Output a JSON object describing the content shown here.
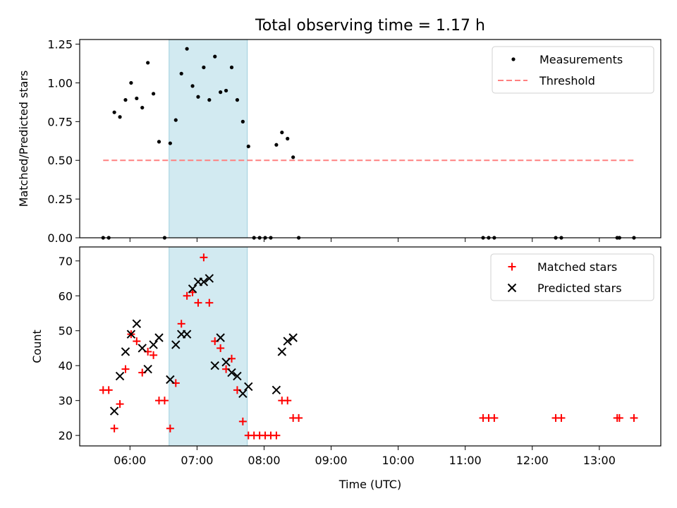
{
  "title": "Total observing time = 1.17 h",
  "chart_data": [
    {
      "type": "scatter",
      "ylabel": "Matched/Predicted stars",
      "xlabel": "",
      "xlim": [
        "05:15",
        "13:55"
      ],
      "ylim": [
        0,
        1.28
      ],
      "yticks": [
        0,
        0.25,
        0.5,
        0.75,
        1.0,
        1.25
      ],
      "ytick_labels": [
        "0.00",
        "0.25",
        "0.50",
        "0.75",
        "1.00",
        "1.25"
      ],
      "xtick_labels": [],
      "legend_position": "top-right",
      "shaded_span": {
        "x": [
          "06:35",
          "07:45"
        ],
        "color": "#add8e6"
      },
      "series": [
        {
          "name": "Measurements",
          "kind": "points",
          "color": "#000000",
          "points": [
            [
              "05:36",
              0
            ],
            [
              "05:41",
              0
            ],
            [
              "05:46",
              0.81
            ],
            [
              "05:51",
              0.78
            ],
            [
              "05:56",
              0.89
            ],
            [
              "06:01",
              1.0
            ],
            [
              "06:06",
              0.9
            ],
            [
              "06:11",
              0.84
            ],
            [
              "06:16",
              1.13
            ],
            [
              "06:21",
              0.93
            ],
            [
              "06:26",
              0.62
            ],
            [
              "06:31",
              0
            ],
            [
              "06:36",
              0.61
            ],
            [
              "06:41",
              0.76
            ],
            [
              "06:46",
              1.06
            ],
            [
              "06:51",
              1.22
            ],
            [
              "06:56",
              0.98
            ],
            [
              "07:01",
              0.91
            ],
            [
              "07:06",
              1.1
            ],
            [
              "07:11",
              0.89
            ],
            [
              "07:16",
              1.17
            ],
            [
              "07:21",
              0.94
            ],
            [
              "07:26",
              0.95
            ],
            [
              "07:31",
              1.1
            ],
            [
              "07:36",
              0.89
            ],
            [
              "07:41",
              0.75
            ],
            [
              "07:46",
              0.59
            ],
            [
              "07:51",
              0
            ],
            [
              "07:56",
              0
            ],
            [
              "08:01",
              0
            ],
            [
              "08:06",
              0
            ],
            [
              "08:11",
              0.6
            ],
            [
              "08:16",
              0.68
            ],
            [
              "08:21",
              0.64
            ],
            [
              "08:26",
              0.52
            ],
            [
              "08:31",
              0
            ],
            [
              "11:16",
              0
            ],
            [
              "11:21",
              0
            ],
            [
              "11:26",
              0
            ],
            [
              "12:21",
              0
            ],
            [
              "12:26",
              0
            ],
            [
              "13:16",
              0
            ],
            [
              "13:18",
              0
            ],
            [
              "13:31",
              0
            ]
          ]
        },
        {
          "name": "Threshold",
          "kind": "dashed-line",
          "color": "#ff8080",
          "points": [
            [
              "05:36",
              0.5
            ],
            [
              "13:31",
              0.5
            ]
          ]
        }
      ]
    },
    {
      "type": "scatter",
      "ylabel": "Count",
      "xlabel": "Time (UTC)",
      "xlim": [
        "05:15",
        "13:55"
      ],
      "ylim": [
        17,
        74
      ],
      "yticks": [
        20,
        30,
        40,
        50,
        60,
        70
      ],
      "ytick_labels": [
        "20",
        "30",
        "40",
        "50",
        "60",
        "70"
      ],
      "xticks": [
        "06:00",
        "07:00",
        "08:00",
        "09:00",
        "10:00",
        "11:00",
        "12:00",
        "13:00"
      ],
      "xtick_labels": [
        "06:00",
        "07:00",
        "08:00",
        "09:00",
        "10:00",
        "11:00",
        "12:00",
        "13:00"
      ],
      "legend_position": "top-right",
      "shaded_span": {
        "x": [
          "06:35",
          "07:45"
        ],
        "color": "#add8e6"
      },
      "series": [
        {
          "name": "Matched stars",
          "kind": "plus",
          "color": "#ff0000",
          "points": [
            [
              "05:36",
              33
            ],
            [
              "05:41",
              33
            ],
            [
              "05:46",
              22
            ],
            [
              "05:51",
              29
            ],
            [
              "05:56",
              39
            ],
            [
              "06:01",
              49
            ],
            [
              "06:06",
              47
            ],
            [
              "06:11",
              38
            ],
            [
              "06:16",
              44
            ],
            [
              "06:21",
              43
            ],
            [
              "06:26",
              30
            ],
            [
              "06:31",
              30
            ],
            [
              "06:36",
              22
            ],
            [
              "06:41",
              35
            ],
            [
              "06:46",
              52
            ],
            [
              "06:51",
              60
            ],
            [
              "06:56",
              61
            ],
            [
              "07:01",
              58
            ],
            [
              "07:06",
              71
            ],
            [
              "07:11",
              58
            ],
            [
              "07:16",
              47
            ],
            [
              "07:21",
              45
            ],
            [
              "07:26",
              39
            ],
            [
              "07:31",
              42
            ],
            [
              "07:36",
              33
            ],
            [
              "07:41",
              24
            ],
            [
              "07:46",
              20
            ],
            [
              "07:51",
              20
            ],
            [
              "07:56",
              20
            ],
            [
              "08:01",
              20
            ],
            [
              "08:06",
              20
            ],
            [
              "08:11",
              20
            ],
            [
              "08:16",
              30
            ],
            [
              "08:21",
              30
            ],
            [
              "08:26",
              25
            ],
            [
              "08:31",
              25
            ],
            [
              "11:16",
              25
            ],
            [
              "11:21",
              25
            ],
            [
              "11:26",
              25
            ],
            [
              "12:21",
              25
            ],
            [
              "12:26",
              25
            ],
            [
              "13:16",
              25
            ],
            [
              "13:18",
              25
            ],
            [
              "13:31",
              25
            ]
          ]
        },
        {
          "name": "Predicted stars",
          "kind": "cross",
          "color": "#000000",
          "points": [
            [
              "05:46",
              27
            ],
            [
              "05:51",
              37
            ],
            [
              "05:56",
              44
            ],
            [
              "06:01",
              49
            ],
            [
              "06:06",
              52
            ],
            [
              "06:11",
              45
            ],
            [
              "06:16",
              39
            ],
            [
              "06:21",
              46
            ],
            [
              "06:26",
              48
            ],
            [
              "06:36",
              36
            ],
            [
              "06:41",
              46
            ],
            [
              "06:46",
              49
            ],
            [
              "06:51",
              49
            ],
            [
              "06:56",
              62
            ],
            [
              "07:01",
              64
            ],
            [
              "07:06",
              64
            ],
            [
              "07:11",
              65
            ],
            [
              "07:16",
              40
            ],
            [
              "07:21",
              48
            ],
            [
              "07:26",
              41
            ],
            [
              "07:31",
              38
            ],
            [
              "07:36",
              37
            ],
            [
              "07:41",
              32
            ],
            [
              "07:46",
              34
            ],
            [
              "08:11",
              33
            ],
            [
              "08:16",
              44
            ],
            [
              "08:21",
              47
            ],
            [
              "08:26",
              48
            ]
          ]
        }
      ]
    }
  ]
}
